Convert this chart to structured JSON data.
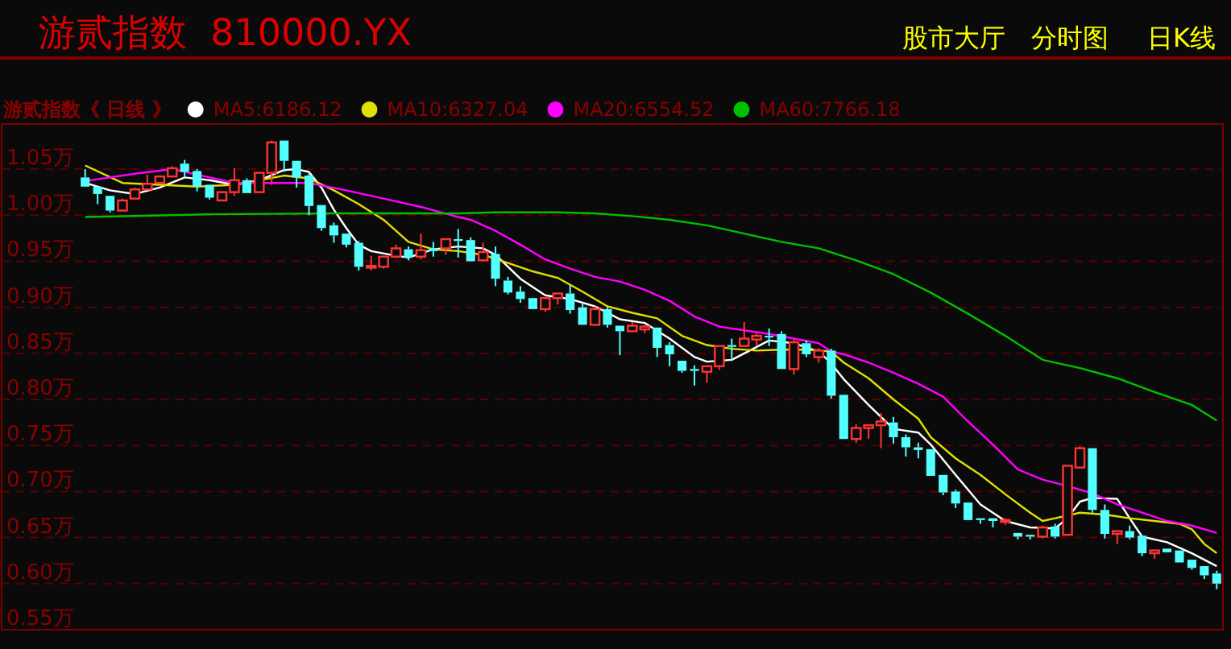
{
  "chart_data": {
    "type": "candlestick",
    "title": "游贰指数  810000.YX",
    "annotations": [
      "股市大厅",
      "分时图",
      "日K线"
    ],
    "legend_title": "游贰指数《 日线 》",
    "legend": "top left",
    "grid": "y",
    "ylim": [
      0.55,
      1.099
    ],
    "yticks": [
      {
        "value": 0.55,
        "label": "0.55万"
      },
      {
        "value": 0.6,
        "label": "0.60万"
      },
      {
        "value": 0.65,
        "label": "0.65万"
      },
      {
        "value": 0.7,
        "label": "0.70万"
      },
      {
        "value": 0.75,
        "label": "0.75万"
      },
      {
        "value": 0.8,
        "label": "0.80万"
      },
      {
        "value": 0.85,
        "label": "0.85万"
      },
      {
        "value": 0.9,
        "label": "0.90万"
      },
      {
        "value": 0.95,
        "label": "0.95万"
      },
      {
        "value": 1.0,
        "label": "1.00万"
      },
      {
        "value": 1.05,
        "label": "1.05万"
      }
    ],
    "categories": [
      null,
      null,
      null,
      null,
      null,
      null,
      null,
      null,
      null,
      null,
      null,
      null,
      null,
      null,
      null,
      null,
      null,
      null,
      null,
      null,
      null,
      null,
      null,
      null,
      null,
      null,
      null,
      null,
      null,
      null,
      null,
      null,
      null,
      null,
      null,
      null,
      null,
      null,
      null,
      null,
      null,
      null,
      null,
      null,
      null,
      null,
      null,
      null,
      null,
      null,
      null,
      null,
      null,
      null,
      null,
      null,
      null,
      null,
      null,
      null,
      null,
      null,
      null,
      null,
      null,
      null,
      null,
      null,
      null,
      null,
      null,
      null,
      null,
      null,
      null,
      null,
      null,
      null,
      null,
      null,
      null,
      null,
      null,
      null,
      null,
      null,
      null,
      null,
      null,
      null,
      null,
      null
    ],
    "ohlc": [
      [
        1.041,
        1.05,
        1.03,
        1.031
      ],
      [
        1.031,
        1.031,
        1.012,
        1.023
      ],
      [
        1.021,
        1.022,
        1.003,
        1.005
      ],
      [
        1.005,
        1.018,
        1.005,
        1.016
      ],
      [
        1.018,
        1.03,
        1.017,
        1.028
      ],
      [
        1.028,
        1.044,
        1.027,
        1.034
      ],
      [
        1.035,
        1.042,
        1.035,
        1.042
      ],
      [
        1.042,
        1.053,
        1.041,
        1.051
      ],
      [
        1.056,
        1.06,
        1.041,
        1.047
      ],
      [
        1.048,
        1.05,
        1.026,
        1.031
      ],
      [
        1.033,
        1.033,
        1.017,
        1.019
      ],
      [
        1.016,
        1.025,
        1.016,
        1.025
      ],
      [
        1.025,
        1.051,
        1.021,
        1.038
      ],
      [
        1.038,
        1.04,
        1.023,
        1.024
      ],
      [
        1.025,
        1.046,
        1.025,
        1.046
      ],
      [
        1.046,
        1.081,
        1.033,
        1.079
      ],
      [
        1.081,
        1.081,
        1.047,
        1.059
      ],
      [
        1.059,
        1.059,
        1.03,
        1.041
      ],
      [
        1.043,
        1.047,
        1.0,
        1.01
      ],
      [
        1.011,
        1.011,
        0.983,
        0.986
      ],
      [
        0.989,
        0.992,
        0.97,
        0.978
      ],
      [
        0.98,
        0.981,
        0.965,
        0.968
      ],
      [
        0.97,
        0.972,
        0.94,
        0.944
      ],
      [
        0.943,
        0.956,
        0.94,
        0.945
      ],
      [
        0.944,
        0.955,
        0.942,
        0.955
      ],
      [
        0.955,
        0.968,
        0.955,
        0.964
      ],
      [
        0.963,
        0.966,
        0.951,
        0.954
      ],
      [
        0.955,
        0.98,
        0.952,
        0.962
      ],
      [
        0.964,
        0.971,
        0.955,
        0.961
      ],
      [
        0.964,
        0.974,
        0.957,
        0.974
      ],
      [
        0.974,
        0.985,
        0.954,
        0.972
      ],
      [
        0.973,
        0.976,
        0.95,
        0.95
      ],
      [
        0.951,
        0.97,
        0.951,
        0.96
      ],
      [
        0.958,
        0.966,
        0.923,
        0.931
      ],
      [
        0.929,
        0.933,
        0.914,
        0.916
      ],
      [
        0.917,
        0.923,
        0.905,
        0.909
      ],
      [
        0.91,
        0.91,
        0.898,
        0.898
      ],
      [
        0.898,
        0.91,
        0.895,
        0.91
      ],
      [
        0.91,
        0.915,
        0.903,
        0.915
      ],
      [
        0.915,
        0.924,
        0.893,
        0.897
      ],
      [
        0.9,
        0.905,
        0.88,
        0.881
      ],
      [
        0.881,
        0.901,
        0.881,
        0.898
      ],
      [
        0.898,
        0.9,
        0.878,
        0.881
      ],
      [
        0.88,
        0.88,
        0.848,
        0.874
      ],
      [
        0.874,
        0.884,
        0.874,
        0.88
      ],
      [
        0.876,
        0.881,
        0.872,
        0.879
      ],
      [
        0.878,
        0.878,
        0.846,
        0.856
      ],
      [
        0.859,
        0.862,
        0.836,
        0.849
      ],
      [
        0.842,
        0.842,
        0.829,
        0.831
      ],
      [
        0.833,
        0.837,
        0.815,
        0.831
      ],
      [
        0.83,
        0.836,
        0.818,
        0.836
      ],
      [
        0.836,
        0.858,
        0.832,
        0.858
      ],
      [
        0.859,
        0.866,
        0.843,
        0.857
      ],
      [
        0.858,
        0.884,
        0.858,
        0.866
      ],
      [
        0.865,
        0.872,
        0.858,
        0.869
      ],
      [
        0.869,
        0.877,
        0.858,
        0.868
      ],
      [
        0.871,
        0.874,
        0.833,
        0.833
      ],
      [
        0.833,
        0.866,
        0.827,
        0.862
      ],
      [
        0.861,
        0.864,
        0.846,
        0.849
      ],
      [
        0.846,
        0.856,
        0.84,
        0.853
      ],
      [
        0.853,
        0.855,
        0.801,
        0.804
      ],
      [
        0.805,
        0.805,
        0.757,
        0.757
      ],
      [
        0.757,
        0.773,
        0.753,
        0.769
      ],
      [
        0.769,
        0.772,
        0.757,
        0.772
      ],
      [
        0.772,
        0.785,
        0.747,
        0.776
      ],
      [
        0.775,
        0.781,
        0.752,
        0.759
      ],
      [
        0.759,
        0.762,
        0.738,
        0.748
      ],
      [
        0.748,
        0.753,
        0.736,
        0.745
      ],
      [
        0.746,
        0.746,
        0.717,
        0.717
      ],
      [
        0.718,
        0.718,
        0.696,
        0.699
      ],
      [
        0.7,
        0.702,
        0.682,
        0.687
      ],
      [
        0.688,
        0.688,
        0.668,
        0.669
      ],
      [
        0.671,
        0.671,
        0.665,
        0.669
      ],
      [
        0.671,
        0.671,
        0.661,
        0.668
      ],
      [
        0.667,
        0.671,
        0.664,
        0.669
      ],
      [
        0.655,
        0.655,
        0.648,
        0.651
      ],
      [
        0.653,
        0.653,
        0.648,
        0.651
      ],
      [
        0.651,
        0.663,
        0.649,
        0.661
      ],
      [
        0.662,
        0.665,
        0.649,
        0.651
      ],
      [
        0.653,
        0.728,
        0.653,
        0.728
      ],
      [
        0.726,
        0.749,
        0.726,
        0.747
      ],
      [
        0.747,
        0.747,
        0.677,
        0.68
      ],
      [
        0.68,
        0.686,
        0.649,
        0.654
      ],
      [
        0.654,
        0.657,
        0.643,
        0.657
      ],
      [
        0.657,
        0.663,
        0.648,
        0.65
      ],
      [
        0.652,
        0.652,
        0.63,
        0.633
      ],
      [
        0.633,
        0.637,
        0.627,
        0.636
      ],
      [
        0.638,
        0.639,
        0.633,
        0.634
      ],
      [
        0.636,
        0.637,
        0.623,
        0.623
      ],
      [
        0.626,
        0.626,
        0.615,
        0.617
      ],
      [
        0.619,
        0.619,
        0.605,
        0.609
      ],
      [
        0.611,
        0.614,
        0.594,
        0.6
      ]
    ],
    "series": [
      {
        "name": "MA5:6186.12",
        "type": "line",
        "color": "#ffffff",
        "values": [
          1.035,
          null,
          1.027,
          null,
          1.023,
          null,
          1.03,
          null,
          1.041,
          null,
          1.038,
          null,
          1.033,
          null,
          1.038,
          null,
          1.049,
          1.05,
          1.047,
          1.03,
          1.006,
          0.986,
          0.968,
          0.961,
          null,
          0.956,
          0.954,
          null,
          0.963,
          null,
          0.966,
          null,
          0.964,
          0.957,
          null,
          0.931,
          null,
          0.913,
          null,
          0.909,
          null,
          0.901,
          null,
          0.887,
          null,
          0.883,
          null,
          0.866,
          null,
          0.846,
          0.841,
          null,
          0.843,
          null,
          0.857,
          0.864,
          null,
          0.861,
          null,
          0.852,
          0.839,
          0.822,
          null,
          0.794,
          null,
          0.768,
          null,
          0.764,
          0.751,
          null,
          0.718,
          null,
          0.686,
          null,
          0.668,
          null,
          0.661,
          null,
          0.66,
          0.671,
          0.689,
          0.693,
          null,
          0.692,
          0.671,
          0.651,
          null,
          0.645,
          null,
          0.633,
          null,
          0.619
        ]
      },
      {
        "name": "MA10:6327.04",
        "type": "line",
        "color": "#e0e000",
        "values": [
          1.054,
          null,
          null,
          1.035,
          null,
          null,
          1.033,
          null,
          null,
          1.031,
          null,
          null,
          1.033,
          null,
          1.038,
          null,
          1.043,
          null,
          1.04,
          null,
          1.027,
          null,
          1.012,
          null,
          0.995,
          null,
          0.971,
          null,
          0.963,
          null,
          0.961,
          null,
          0.957,
          null,
          0.948,
          null,
          0.939,
          null,
          0.932,
          null,
          0.917,
          null,
          0.901,
          null,
          0.894,
          null,
          0.888,
          null,
          0.869,
          null,
          0.859,
          null,
          0.855,
          null,
          0.853,
          null,
          0.854,
          null,
          0.854,
          null,
          0.852,
          0.84,
          null,
          0.823,
          null,
          0.8,
          null,
          0.779,
          0.759,
          null,
          0.736,
          null,
          0.718,
          null,
          0.697,
          null,
          0.677,
          0.668,
          0.671,
          null,
          0.677,
          null,
          0.675,
          null,
          0.671,
          null,
          0.668,
          null,
          0.665,
          0.659,
          0.643,
          0.633
        ]
      },
      {
        "name": "MA20:6554.52",
        "type": "line",
        "color": "#ff00ff",
        "values": [
          1.037,
          null,
          null,
          null,
          1.045,
          null,
          null,
          1.05,
          null,
          1.044,
          null,
          null,
          1.035,
          null,
          null,
          1.035,
          null,
          null,
          1.035,
          null,
          null,
          1.027,
          null,
          null,
          1.018,
          null,
          null,
          1.009,
          null,
          null,
          0.998,
          0.995,
          null,
          0.983,
          null,
          0.968,
          null,
          0.952,
          null,
          0.942,
          null,
          0.933,
          null,
          0.928,
          null,
          0.919,
          null,
          0.907,
          null,
          0.89,
          null,
          0.879,
          null,
          0.875,
          null,
          0.871,
          null,
          0.866,
          null,
          0.861,
          0.852,
          0.849,
          null,
          0.84,
          null,
          0.829,
          null,
          0.817,
          null,
          0.803,
          null,
          0.776,
          null,
          0.751,
          null,
          0.724,
          null,
          0.713,
          null,
          0.706,
          null,
          0.698,
          null,
          0.686,
          null,
          0.677,
          null,
          0.668,
          null,
          0.663,
          null,
          0.655
        ]
      },
      {
        "name": "MA60:7766.18",
        "type": "line",
        "color": "#00c000",
        "values": [
          0.998,
          null,
          null,
          null,
          null,
          null,
          null,
          null,
          null,
          null,
          1.001,
          null,
          null,
          null,
          null,
          null,
          null,
          null,
          null,
          null,
          1.002,
          null,
          null,
          null,
          null,
          null,
          null,
          null,
          null,
          null,
          1.002,
          null,
          null,
          1.003,
          null,
          null,
          null,
          null,
          1.003,
          null,
          null,
          1.002,
          null,
          null,
          0.999,
          null,
          null,
          0.995,
          null,
          null,
          0.989,
          null,
          null,
          0.98,
          null,
          null,
          0.971,
          null,
          null,
          0.964,
          null,
          null,
          0.951,
          null,
          null,
          0.936,
          null,
          null,
          0.916,
          null,
          null,
          0.893,
          null,
          null,
          0.869,
          null,
          null,
          0.843,
          null,
          null,
          0.834,
          null,
          null,
          0.823,
          null,
          null,
          0.808,
          null,
          null,
          0.794,
          null,
          0.777
        ]
      }
    ]
  }
}
